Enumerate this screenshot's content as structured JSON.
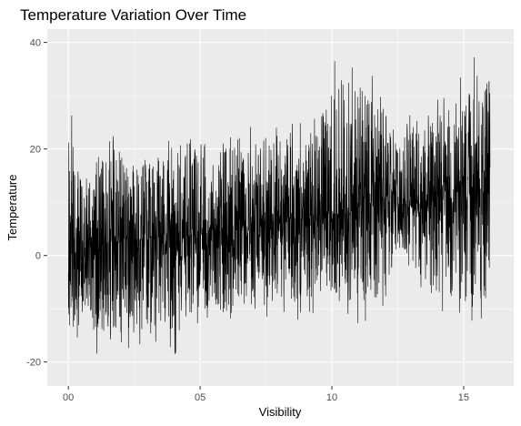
{
  "chart_data": {
    "type": "line",
    "title": "Temperature Variation Over Time",
    "xlabel": "Visibility",
    "ylabel": "Temperature",
    "xlim": [
      -0.8,
      16.9
    ],
    "ylim": [
      -24.5,
      42.5
    ],
    "x_ticks": [
      {
        "value": 0,
        "label": "00"
      },
      {
        "value": 5,
        "label": "05"
      },
      {
        "value": 10,
        "label": "10"
      },
      {
        "value": 15,
        "label": "15"
      }
    ],
    "y_ticks": [
      {
        "value": -20,
        "label": "-20"
      },
      {
        "value": 0,
        "label": "0"
      },
      {
        "value": 20,
        "label": "20"
      },
      {
        "value": 40,
        "label": "40"
      }
    ],
    "grid": true,
    "panel_background": "#ebebeb",
    "line_color": "#000000",
    "series": [
      {
        "x": [
          0.0,
          0.5,
          1.0,
          1.5,
          2.0,
          2.5,
          3.0,
          3.5,
          4.0,
          4.5,
          5.0,
          5.5,
          6.0,
          6.5,
          7.0,
          7.5,
          8.0,
          8.5,
          9.0,
          9.5,
          10.0,
          10.5,
          11.0,
          11.5,
          12.0,
          12.5,
          13.0,
          13.5,
          14.0,
          14.5,
          15.0,
          15.5,
          16.0
        ],
        "center": [
          0,
          1,
          2,
          2,
          3,
          3,
          3,
          4,
          4,
          4,
          4,
          5,
          5,
          5,
          6,
          6,
          6,
          7,
          7,
          7,
          8,
          8,
          9,
          10,
          11,
          10,
          9,
          9,
          10,
          10,
          11,
          12,
          12
        ],
        "upper": [
          30,
          17,
          18,
          23,
          22,
          20,
          21,
          21,
          22,
          22,
          25,
          23,
          23,
          23,
          25,
          25,
          26,
          26,
          26,
          27,
          40,
          37,
          36,
          35,
          30,
          22,
          27,
          27,
          30,
          30,
          36,
          38,
          38
        ],
        "lower": [
          -20,
          -15,
          -18,
          -21,
          -21,
          -15,
          -19,
          -16,
          -20,
          -14,
          -13,
          -12,
          -14,
          -11,
          -13,
          -12,
          -11,
          -13,
          -12,
          -11,
          -11,
          -12,
          -13,
          -12,
          -10,
          0,
          -3,
          -7,
          -10,
          -12,
          -13,
          -14,
          -12
        ]
      }
    ]
  }
}
